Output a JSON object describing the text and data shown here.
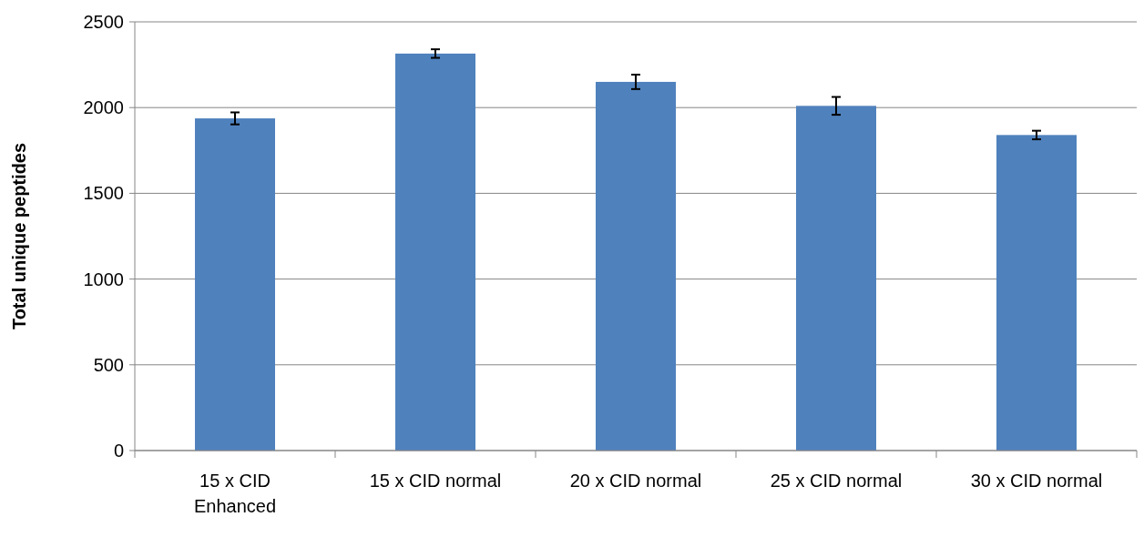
{
  "chart_data": {
    "type": "bar",
    "ylabel": "Total unique peptides",
    "categories": [
      "15 x CID Enhanced",
      "15 x CID normal",
      "20 x CID normal",
      "25 x CID normal",
      "30 x CID normal"
    ],
    "values": [
      1937,
      2315,
      2150,
      2010,
      1840
    ],
    "errors": [
      35,
      25,
      42,
      52,
      25
    ],
    "color": "#4f81bd",
    "ylim": [
      0,
      2500
    ],
    "yticks": [
      0,
      500,
      1000,
      1500,
      2000,
      2500
    ],
    "grid": "y"
  }
}
